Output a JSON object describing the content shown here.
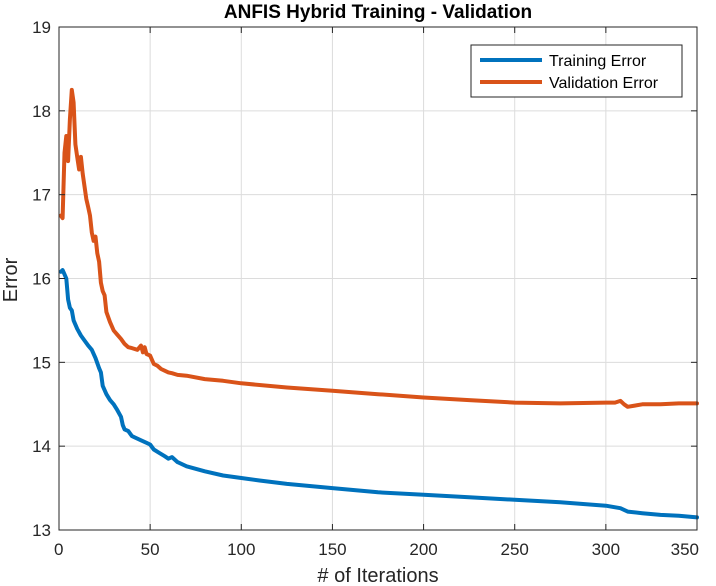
{
  "chart_data": {
    "type": "line",
    "title": "ANFIS Hybrid Training - Validation",
    "xlabel": "# of Iterations",
    "ylabel": "Error",
    "xlim": [
      0,
      350
    ],
    "ylim": [
      13,
      19
    ],
    "xticks": [
      0,
      50,
      100,
      150,
      200,
      250,
      300,
      350
    ],
    "yticks": [
      13,
      14,
      15,
      16,
      17,
      18,
      19
    ],
    "grid": true,
    "legend_position": "top-right",
    "series": [
      {
        "name": "Training Error",
        "color": "#0072BD",
        "points": [
          [
            1,
            16.08
          ],
          [
            2,
            16.1
          ],
          [
            3,
            16.05
          ],
          [
            4,
            16.0
          ],
          [
            5,
            15.75
          ],
          [
            6,
            15.65
          ],
          [
            7,
            15.62
          ],
          [
            8,
            15.5
          ],
          [
            10,
            15.4
          ],
          [
            12,
            15.32
          ],
          [
            14,
            15.26
          ],
          [
            16,
            15.2
          ],
          [
            18,
            15.15
          ],
          [
            20,
            15.05
          ],
          [
            22,
            14.93
          ],
          [
            23,
            14.88
          ],
          [
            24,
            14.72
          ],
          [
            26,
            14.62
          ],
          [
            28,
            14.55
          ],
          [
            30,
            14.5
          ],
          [
            32,
            14.43
          ],
          [
            34,
            14.35
          ],
          [
            35,
            14.25
          ],
          [
            36,
            14.2
          ],
          [
            38,
            14.18
          ],
          [
            40,
            14.12
          ],
          [
            42,
            14.1
          ],
          [
            45,
            14.07
          ],
          [
            48,
            14.04
          ],
          [
            50,
            14.02
          ],
          [
            52,
            13.96
          ],
          [
            55,
            13.92
          ],
          [
            58,
            13.88
          ],
          [
            60,
            13.85
          ],
          [
            62,
            13.87
          ],
          [
            65,
            13.81
          ],
          [
            70,
            13.76
          ],
          [
            75,
            13.73
          ],
          [
            80,
            13.7
          ],
          [
            90,
            13.65
          ],
          [
            100,
            13.62
          ],
          [
            110,
            13.59
          ],
          [
            125,
            13.55
          ],
          [
            150,
            13.5
          ],
          [
            175,
            13.45
          ],
          [
            200,
            13.42
          ],
          [
            225,
            13.39
          ],
          [
            250,
            13.36
          ],
          [
            275,
            13.33
          ],
          [
            300,
            13.29
          ],
          [
            308,
            13.26
          ],
          [
            312,
            13.22
          ],
          [
            320,
            13.2
          ],
          [
            330,
            13.18
          ],
          [
            340,
            13.17
          ],
          [
            350,
            13.15
          ]
        ]
      },
      {
        "name": "Validation Error",
        "color": "#D95319",
        "points": [
          [
            1,
            16.75
          ],
          [
            2,
            16.72
          ],
          [
            3,
            17.5
          ],
          [
            4,
            17.7
          ],
          [
            5,
            17.4
          ],
          [
            6,
            17.9
          ],
          [
            7,
            18.25
          ],
          [
            8,
            18.1
          ],
          [
            9,
            17.6
          ],
          [
            10,
            17.45
          ],
          [
            11,
            17.3
          ],
          [
            12,
            17.45
          ],
          [
            13,
            17.25
          ],
          [
            14,
            17.1
          ],
          [
            15,
            16.95
          ],
          [
            16,
            16.85
          ],
          [
            17,
            16.75
          ],
          [
            18,
            16.55
          ],
          [
            19,
            16.45
          ],
          [
            20,
            16.5
          ],
          [
            21,
            16.3
          ],
          [
            22,
            16.2
          ],
          [
            23,
            15.95
          ],
          [
            24,
            15.85
          ],
          [
            25,
            15.8
          ],
          [
            26,
            15.6
          ],
          [
            28,
            15.48
          ],
          [
            30,
            15.38
          ],
          [
            32,
            15.33
          ],
          [
            34,
            15.28
          ],
          [
            36,
            15.22
          ],
          [
            38,
            15.18
          ],
          [
            40,
            15.17
          ],
          [
            43,
            15.15
          ],
          [
            45,
            15.2
          ],
          [
            46,
            15.12
          ],
          [
            47,
            15.18
          ],
          [
            48,
            15.1
          ],
          [
            50,
            15.08
          ],
          [
            52,
            14.98
          ],
          [
            54,
            14.96
          ],
          [
            56,
            14.92
          ],
          [
            58,
            14.9
          ],
          [
            60,
            14.88
          ],
          [
            62,
            14.87
          ],
          [
            65,
            14.85
          ],
          [
            70,
            14.84
          ],
          [
            80,
            14.8
          ],
          [
            90,
            14.78
          ],
          [
            100,
            14.75
          ],
          [
            125,
            14.7
          ],
          [
            150,
            14.66
          ],
          [
            175,
            14.62
          ],
          [
            200,
            14.58
          ],
          [
            225,
            14.55
          ],
          [
            250,
            14.52
          ],
          [
            275,
            14.51
          ],
          [
            300,
            14.52
          ],
          [
            305,
            14.52
          ],
          [
            308,
            14.54
          ],
          [
            310,
            14.5
          ],
          [
            312,
            14.47
          ],
          [
            315,
            14.48
          ],
          [
            320,
            14.5
          ],
          [
            330,
            14.5
          ],
          [
            340,
            14.51
          ],
          [
            350,
            14.51
          ]
        ]
      }
    ]
  }
}
